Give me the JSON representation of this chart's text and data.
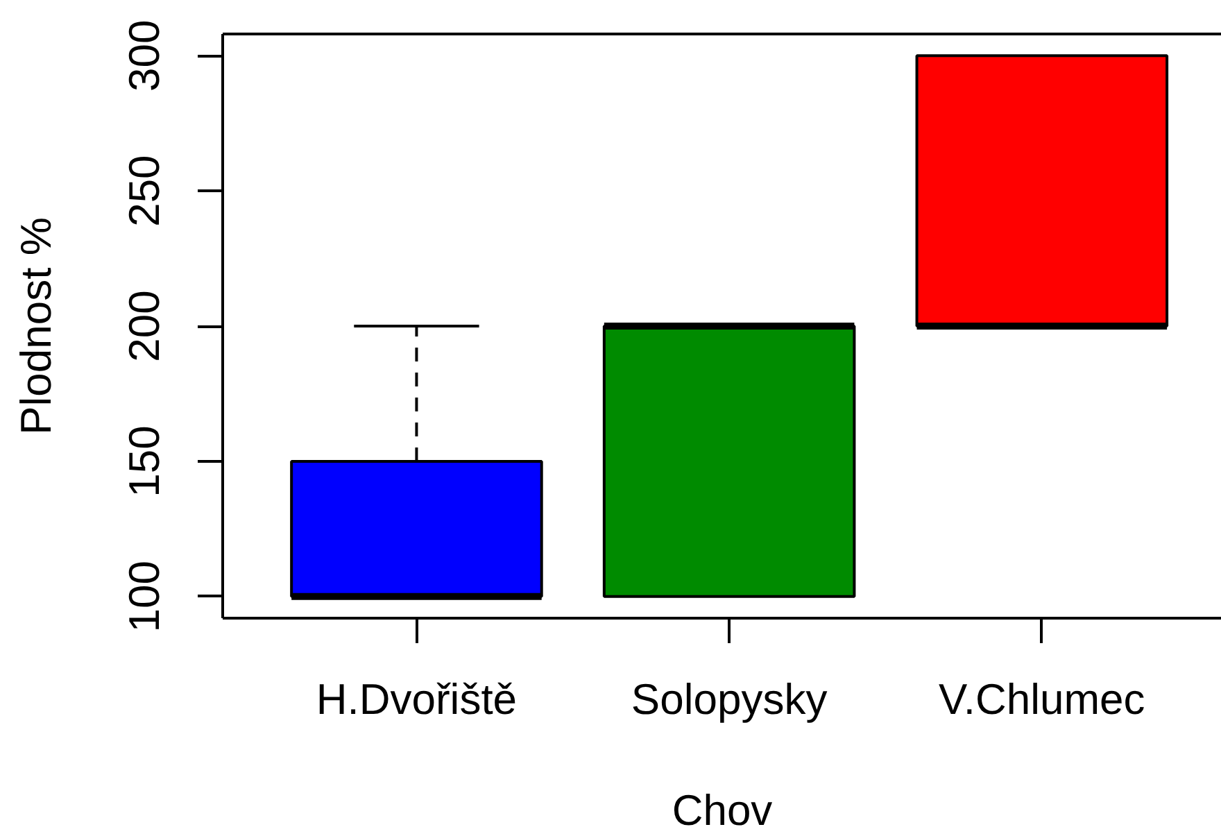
{
  "chart_data": {
    "type": "box",
    "xlabel": "Chov",
    "ylabel": "Plodnost %",
    "categories": [
      "H.Dvořiště",
      "Solopysky",
      "V.Chlumec"
    ],
    "boxes": [
      {
        "low": 100,
        "q1": 100,
        "median": 100,
        "q3": 150,
        "high": 200
      },
      {
        "low": 100,
        "q1": 100,
        "median": 200,
        "q3": 200,
        "high": 200
      },
      {
        "low": 200,
        "q1": 200,
        "median": 200,
        "q3": 300,
        "high": 300
      }
    ],
    "colors": [
      "#0000ff",
      "#008b00",
      "#ff0000"
    ],
    "ylim": [
      92,
      308
    ],
    "yticks": [
      100,
      150,
      200,
      250,
      300
    ],
    "grid": false,
    "line_style": "dashed"
  }
}
